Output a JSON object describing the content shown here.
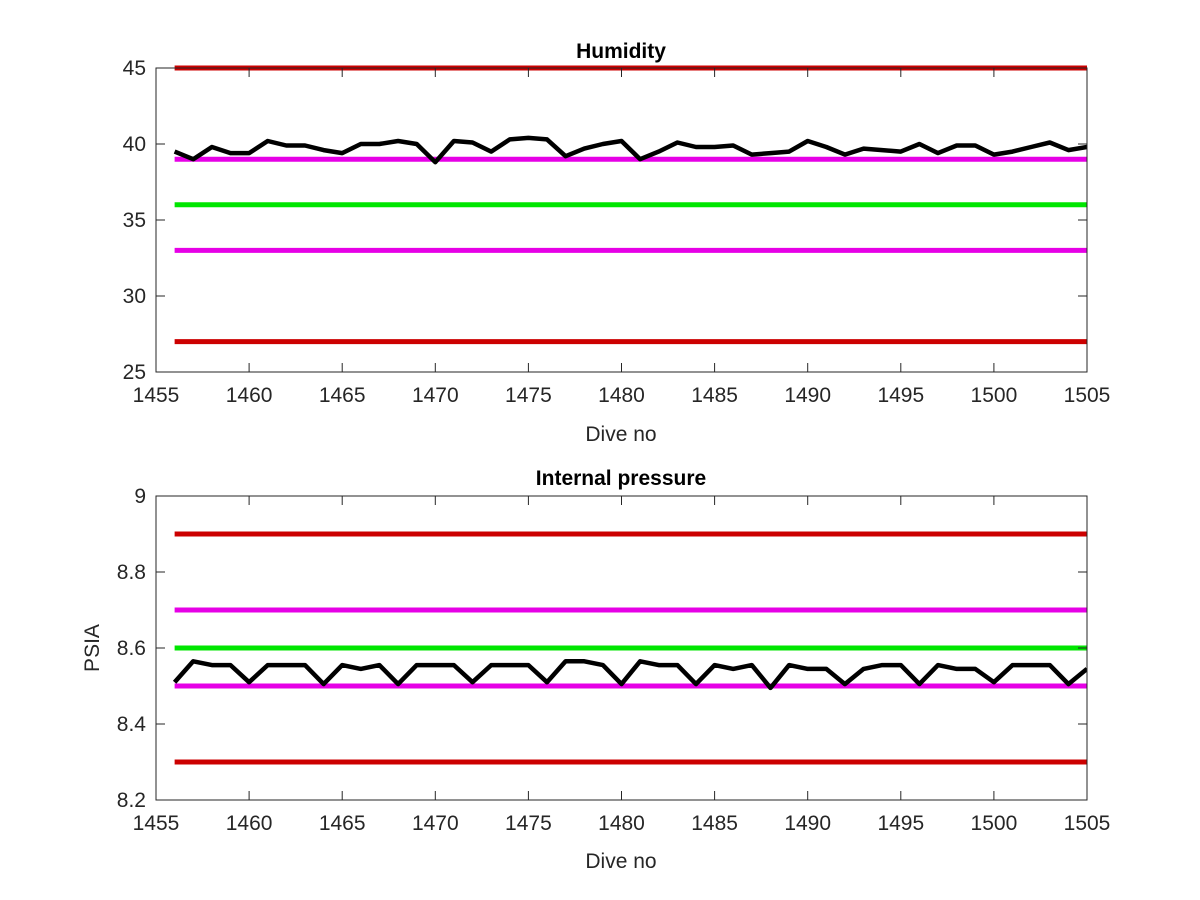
{
  "chart_data": [
    {
      "type": "line",
      "title": "Humidity",
      "xlabel": "Dive no",
      "ylabel": "",
      "xlim": [
        1455,
        1505
      ],
      "ylim": [
        25,
        45
      ],
      "xticks": [
        1455,
        1460,
        1465,
        1470,
        1475,
        1480,
        1485,
        1490,
        1495,
        1500,
        1505
      ],
      "yticks": [
        25,
        30,
        35,
        40,
        45
      ],
      "grid": false,
      "thresholds": [
        {
          "value": 45,
          "color": "#cc0000"
        },
        {
          "value": 39,
          "color": "#e600e6"
        },
        {
          "value": 36,
          "color": "#00e600"
        },
        {
          "value": 33,
          "color": "#e600e6"
        },
        {
          "value": 27,
          "color": "#cc0000"
        }
      ],
      "series": [
        {
          "color": "#000000",
          "x": [
            1456,
            1457,
            1458,
            1459,
            1460,
            1461,
            1462,
            1463,
            1464,
            1465,
            1466,
            1467,
            1468,
            1469,
            1470,
            1471,
            1472,
            1473,
            1474,
            1475,
            1476,
            1477,
            1478,
            1479,
            1480,
            1481,
            1482,
            1483,
            1484,
            1485,
            1486,
            1487,
            1488,
            1489,
            1490,
            1491,
            1492,
            1493,
            1494,
            1495,
            1496,
            1497,
            1498,
            1499,
            1500,
            1501,
            1502,
            1503,
            1504,
            1505
          ],
          "y": [
            39.5,
            39.0,
            39.8,
            39.4,
            39.4,
            40.2,
            39.9,
            39.9,
            39.6,
            39.4,
            40.0,
            40.0,
            40.2,
            40.0,
            38.8,
            40.2,
            40.1,
            39.5,
            40.3,
            40.4,
            40.3,
            39.2,
            39.7,
            40.0,
            40.2,
            39.0,
            39.5,
            40.1,
            39.8,
            39.8,
            39.9,
            39.3,
            39.4,
            39.5,
            40.2,
            39.8,
            39.3,
            39.7,
            39.6,
            39.5,
            40.0,
            39.4,
            39.9,
            39.9,
            39.3,
            39.5,
            39.8,
            40.1,
            39.6,
            39.8
          ]
        }
      ]
    },
    {
      "type": "line",
      "title": "Internal pressure",
      "xlabel": "Dive no",
      "ylabel": "PSIA",
      "xlim": [
        1455,
        1505
      ],
      "ylim": [
        8.2,
        9
      ],
      "xticks": [
        1455,
        1460,
        1465,
        1470,
        1475,
        1480,
        1485,
        1490,
        1495,
        1500,
        1505
      ],
      "yticks": [
        8.2,
        8.4,
        8.6,
        8.8,
        9
      ],
      "grid": false,
      "thresholds": [
        {
          "value": 8.9,
          "color": "#cc0000"
        },
        {
          "value": 8.7,
          "color": "#e600e6"
        },
        {
          "value": 8.6,
          "color": "#00e600"
        },
        {
          "value": 8.5,
          "color": "#e600e6"
        },
        {
          "value": 8.3,
          "color": "#cc0000"
        }
      ],
      "series": [
        {
          "color": "#000000",
          "x": [
            1456,
            1457,
            1458,
            1459,
            1460,
            1461,
            1462,
            1463,
            1464,
            1465,
            1466,
            1467,
            1468,
            1469,
            1470,
            1471,
            1472,
            1473,
            1474,
            1475,
            1476,
            1477,
            1478,
            1479,
            1480,
            1481,
            1482,
            1483,
            1484,
            1485,
            1486,
            1487,
            1488,
            1489,
            1490,
            1491,
            1492,
            1493,
            1494,
            1495,
            1496,
            1497,
            1498,
            1499,
            1500,
            1501,
            1502,
            1503,
            1504,
            1505
          ],
          "y": [
            8.51,
            8.565,
            8.555,
            8.555,
            8.51,
            8.555,
            8.555,
            8.555,
            8.505,
            8.555,
            8.545,
            8.555,
            8.505,
            8.555,
            8.555,
            8.555,
            8.51,
            8.555,
            8.555,
            8.555,
            8.51,
            8.565,
            8.565,
            8.555,
            8.505,
            8.565,
            8.555,
            8.555,
            8.505,
            8.555,
            8.545,
            8.555,
            8.495,
            8.555,
            8.545,
            8.545,
            8.505,
            8.545,
            8.555,
            8.555,
            8.505,
            8.555,
            8.545,
            8.545,
            8.51,
            8.555,
            8.555,
            8.555,
            8.505,
            8.545
          ]
        }
      ]
    }
  ]
}
